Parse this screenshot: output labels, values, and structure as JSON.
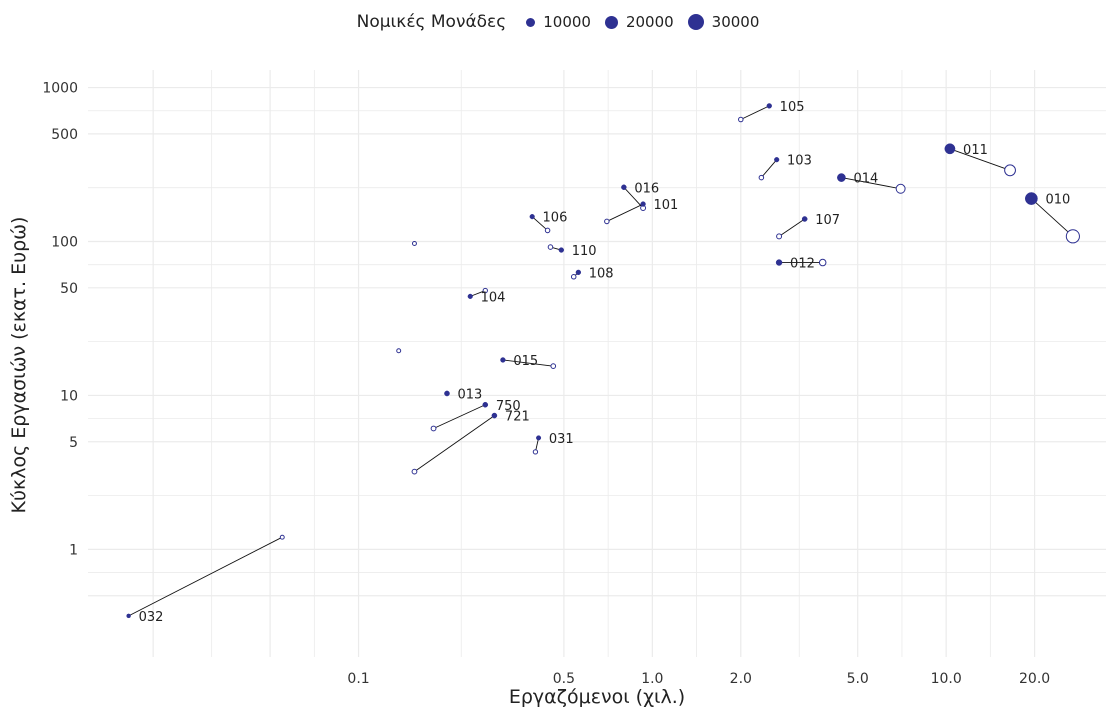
{
  "chart_data": {
    "type": "scatter",
    "xlabel": "Εργαζόμενοι (χιλ.)",
    "ylabel": "Κύκλος Εργασιών (εκατ. Ευρώ)",
    "x_scale": "log",
    "y_scale": "log",
    "xlim": [
      0.012,
      35
    ],
    "ylim": [
      0.2,
      1300
    ],
    "x_ticks": [
      0.1,
      0.5,
      1.0,
      2.0,
      5.0,
      10.0,
      20.0
    ],
    "x_tick_labels": [
      "0.1",
      "0.5",
      "1.0",
      "2.0",
      "5.0",
      "10.0",
      "20.0"
    ],
    "y_ticks": [
      1,
      5,
      10,
      50,
      100,
      500,
      1000
    ],
    "y_tick_labels": [
      "1",
      "5",
      "10",
      "50",
      "100",
      "500",
      "1000"
    ],
    "grid": true,
    "legend": {
      "title": "Νομικές Μονάδες",
      "position": "top",
      "entries": [
        {
          "label": "10000",
          "size": 10000
        },
        {
          "label": "20000",
          "size": 20000
        },
        {
          "label": "30000",
          "size": 30000
        }
      ]
    },
    "colors": {
      "point": "#2e3192",
      "line": "#111111",
      "grid": "#ebebeb"
    },
    "series_note_solid": "filled marker = first point",
    "points": [
      {
        "label": "105",
        "x1": 2.5,
        "y1": 760,
        "s1": 800,
        "x2": 2.0,
        "y2": 620,
        "s2": 600
      },
      {
        "label": "011",
        "x1": 10.3,
        "y1": 400,
        "s1": 9500,
        "x2": 16.5,
        "y2": 290,
        "s2": 11000
      },
      {
        "label": "103",
        "x1": 2.65,
        "y1": 340,
        "s1": 700,
        "x2": 2.35,
        "y2": 260,
        "s2": 600
      },
      {
        "label": "014",
        "x1": 4.4,
        "y1": 260,
        "s1": 5000,
        "x2": 7.0,
        "y2": 220,
        "s2": 6500
      },
      {
        "label": "010",
        "x1": 19.5,
        "y1": 190,
        "s1": 15000,
        "x2": 27.0,
        "y2": 108,
        "s2": 18000
      },
      {
        "label": "016",
        "x1": 0.8,
        "y1": 225,
        "s1": 900,
        "x2": 0.93,
        "y2": 165,
        "s2": 900
      },
      {
        "label": "101",
        "x1": 0.93,
        "y1": 175,
        "s1": 800,
        "x2": 0.7,
        "y2": 135,
        "s2": 600
      },
      {
        "label": "106",
        "x1": 0.39,
        "y1": 145,
        "s1": 700,
        "x2": 0.44,
        "y2": 118,
        "s2": 600
      },
      {
        "label": "107",
        "x1": 3.3,
        "y1": 140,
        "s1": 1000,
        "x2": 2.7,
        "y2": 108,
        "s2": 900
      },
      {
        "label": "110",
        "x1": 0.49,
        "y1": 88,
        "s1": 800,
        "x2": 0.45,
        "y2": 92,
        "s2": 600
      },
      {
        "label": "012",
        "x1": 2.7,
        "y1": 73,
        "s1": 1800,
        "x2": 3.8,
        "y2": 73,
        "s2": 2500
      },
      {
        "label": "108",
        "x1": 0.56,
        "y1": 63,
        "s1": 800,
        "x2": 0.54,
        "y2": 59,
        "s2": 600
      },
      {
        "label": "104",
        "x1": 0.24,
        "y1": 44,
        "s1": 700,
        "x2": 0.27,
        "y2": 48,
        "s2": 500
      },
      {
        "label": "015",
        "x1": 0.31,
        "y1": 17,
        "s1": 800,
        "x2": 0.46,
        "y2": 15.5,
        "s2": 700
      },
      {
        "label": "013",
        "x1": 0.2,
        "y1": 10.3,
        "s1": 1000,
        "x2": null,
        "y2": null,
        "s2": null
      },
      {
        "label": "750",
        "x1": 0.27,
        "y1": 8.7,
        "s1": 1000,
        "x2": 0.18,
        "y2": 6.1,
        "s2": 800
      },
      {
        "label": "721",
        "x1": 0.29,
        "y1": 7.4,
        "s1": 1000,
        "x2": 0.155,
        "y2": 3.2,
        "s2": 800
      },
      {
        "label": "031",
        "x1": 0.41,
        "y1": 5.3,
        "s1": 600,
        "x2": 0.4,
        "y2": 4.3,
        "s2": 500
      },
      {
        "label": "032",
        "x1": 0.0165,
        "y1": 0.37,
        "s1": 300,
        "x2": 0.055,
        "y2": 1.2,
        "s2": 300
      },
      {
        "label": "",
        "x1": null,
        "y1": null,
        "s1": null,
        "x2": 0.155,
        "y2": 97,
        "s2": 300
      },
      {
        "label": "",
        "x1": null,
        "y1": null,
        "s1": null,
        "x2": 0.137,
        "y2": 19.5,
        "s2": 300
      }
    ]
  }
}
